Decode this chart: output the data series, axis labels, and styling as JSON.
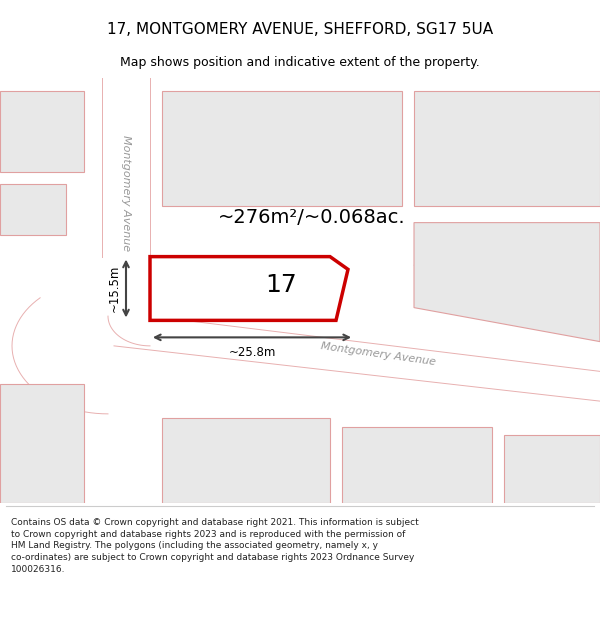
{
  "title": "17, MONTGOMERY AVENUE, SHEFFORD, SG17 5UA",
  "subtitle": "Map shows position and indicative extent of the property.",
  "area_label": "~276m²/~0.068ac.",
  "plot_number": "17",
  "dim_width": "~25.8m",
  "dim_height": "~15.5m",
  "footer_text": "Contains OS data © Crown copyright and database right 2021. This information is subject\nto Crown copyright and database rights 2023 and is reproduced with the permission of\nHM Land Registry. The polygons (including the associated geometry, namely x, y\nco-ordinates) are subject to Crown copyright and database rights 2023 Ordnance Survey\n100026316.",
  "bg_color": "#f0f0f0",
  "road_color": "#ffffff",
  "plot_outline_color": "#cc0000",
  "building_fill": "#e8e8e8",
  "building_edge": "#e0a0a0",
  "road_line_color": "#e8b0b0",
  "street_label_color": "#999999",
  "dim_line_color": "#444444",
  "footer_bg": "#ffffff",
  "title_fontsize": 11,
  "subtitle_fontsize": 9,
  "area_fontsize": 14,
  "plot_num_fontsize": 18,
  "dim_fontsize": 8.5,
  "street_fontsize": 8,
  "footer_fontsize": 6.5
}
